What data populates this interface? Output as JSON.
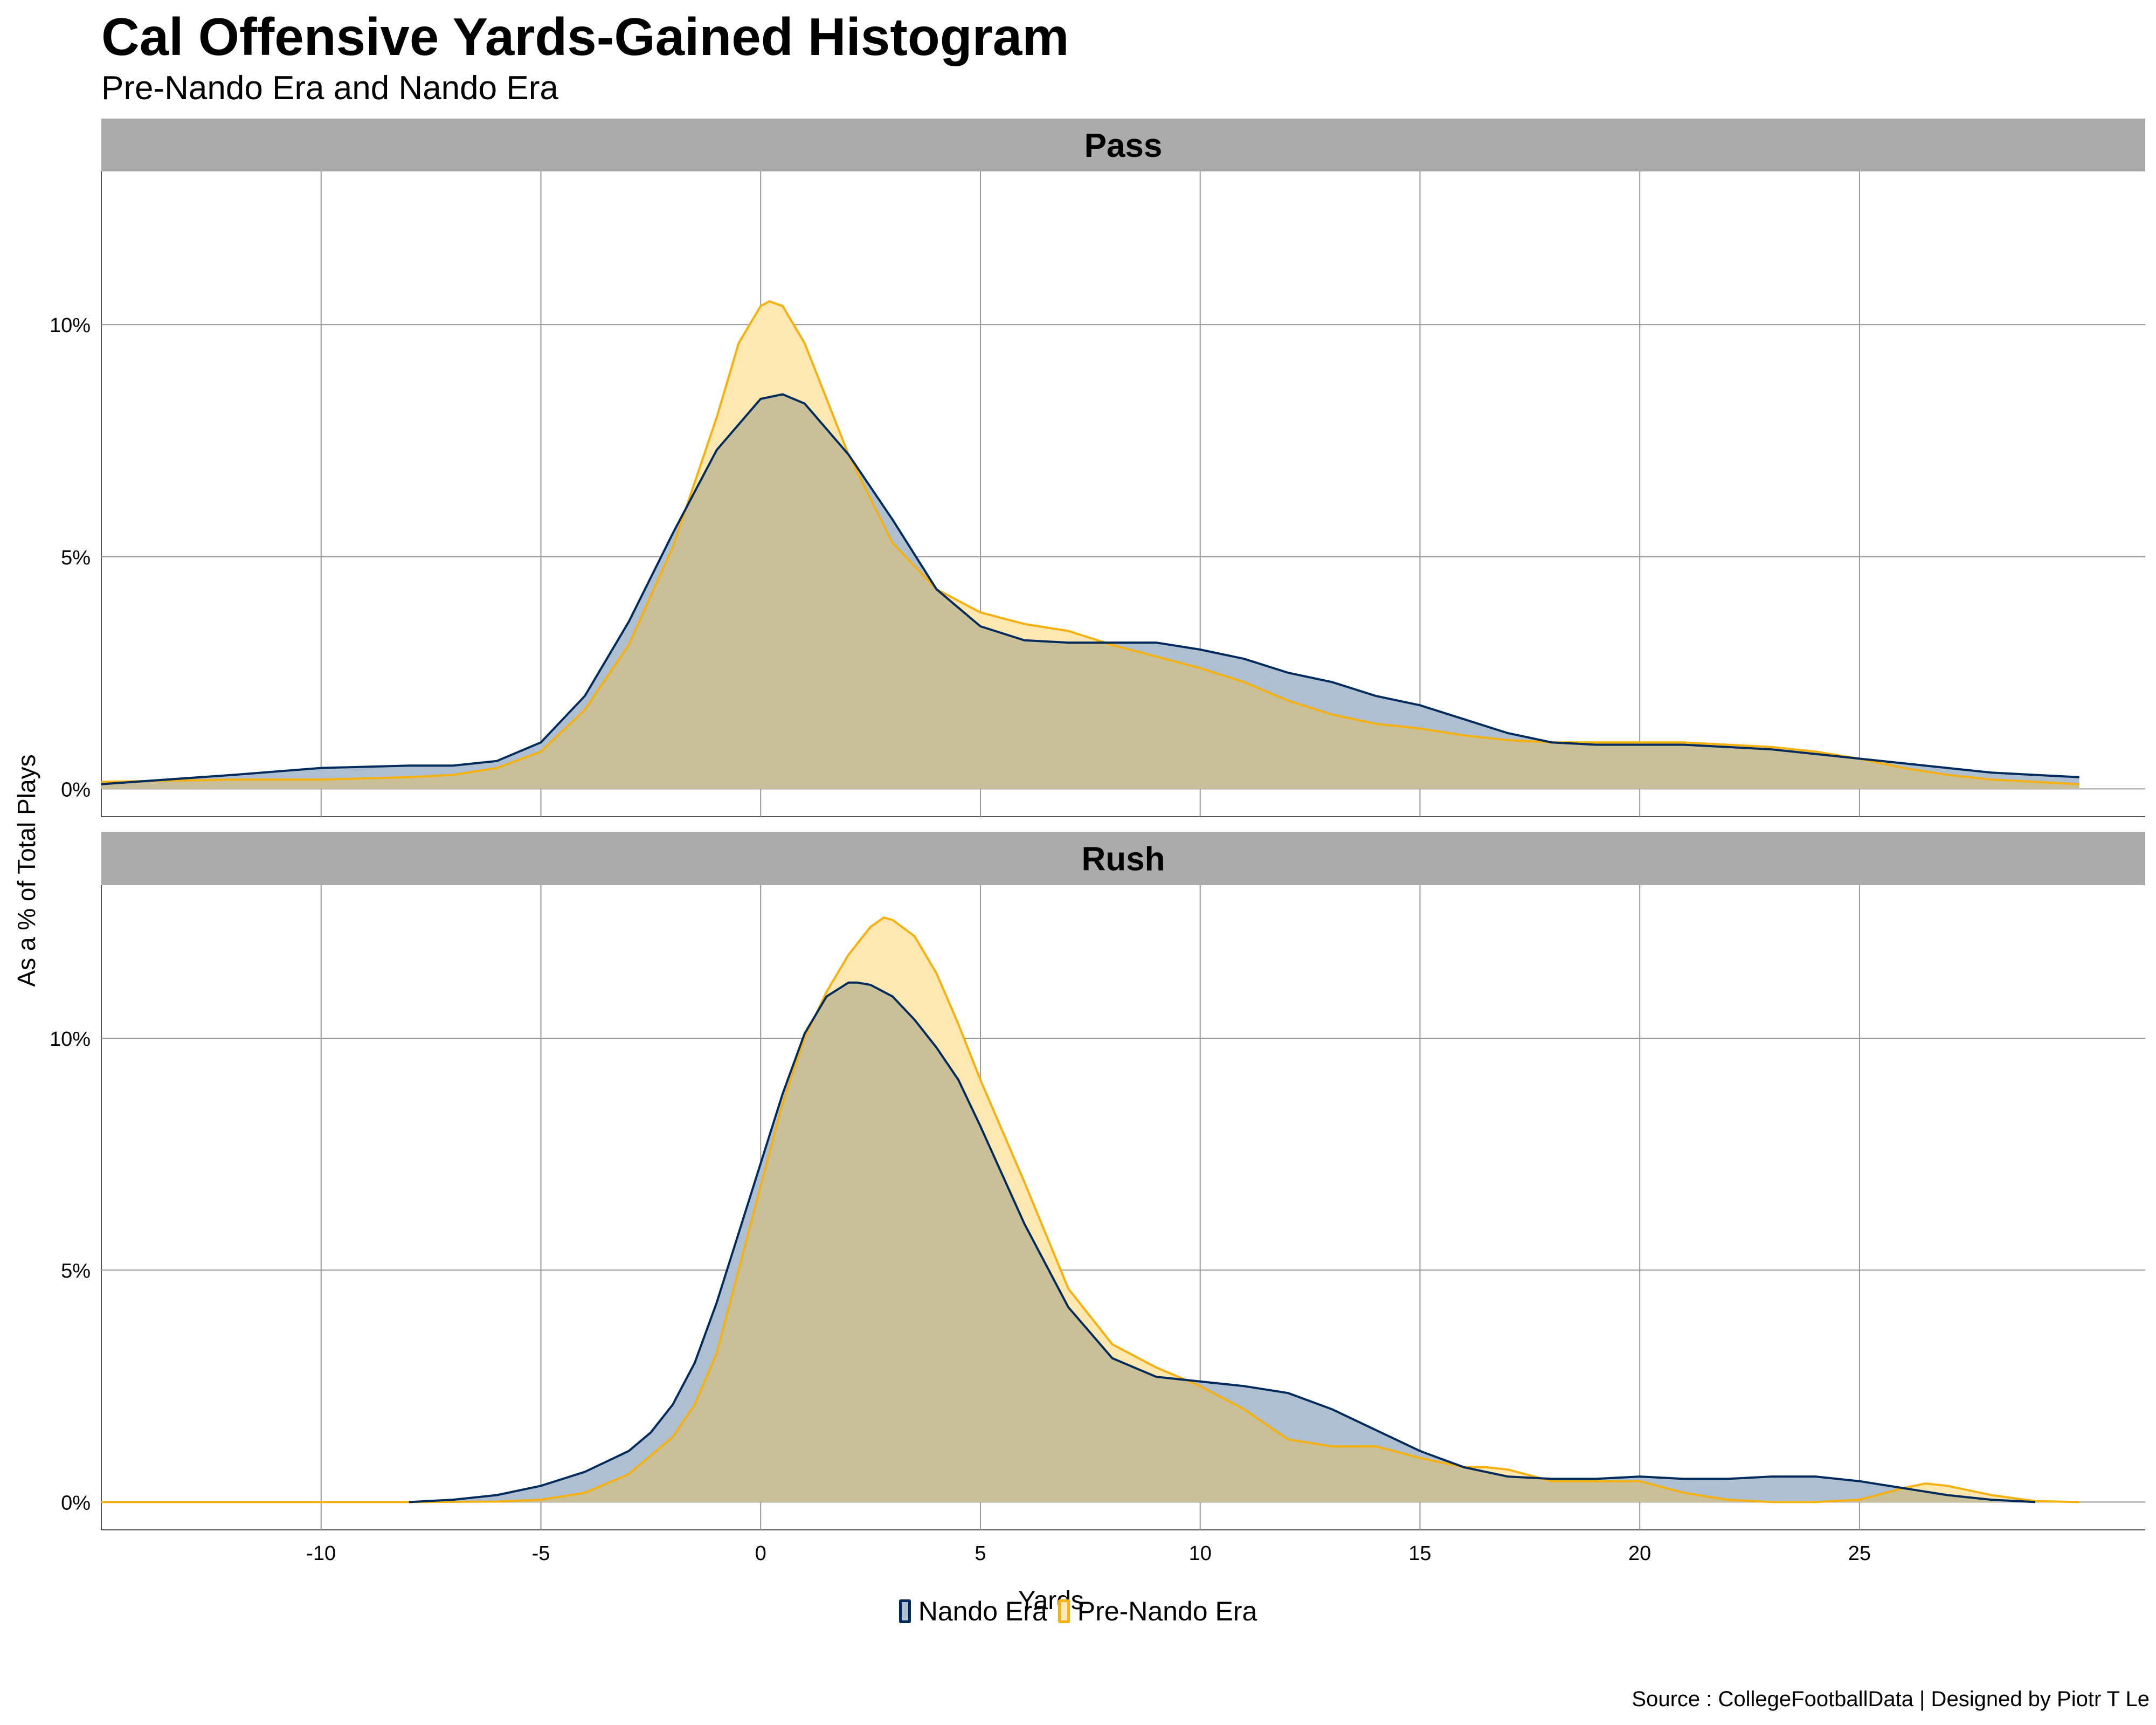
{
  "chart_data": {
    "type": "area",
    "title": "Cal Offensive Yards-Gained Histogram",
    "subtitle": "Pre-Nando Era and Nando Era",
    "xlabel": "Yards",
    "ylabel": "As a % of Total Plays",
    "xlim": [
      -15,
      31.5
    ],
    "ylim": [
      -0.6,
      13.3
    ],
    "x_ticks": [
      -10,
      -5,
      0,
      5,
      10,
      15,
      20,
      25
    ],
    "x_tick_labels": [
      "-10",
      "-5",
      "0",
      "5",
      "10",
      "15",
      "20",
      "25"
    ],
    "y_ticks": [
      0,
      5,
      10
    ],
    "y_tick_labels": [
      "0%",
      "5%",
      "10%"
    ],
    "grid": true,
    "legend_position": "bottom",
    "caption": "Source : CollegeFootballData | Designed by Piotr T Le",
    "colors": {
      "nando_line": "#002b5c",
      "nando_fill": "#aebfd2",
      "pre_nando_line": "#f5b10f",
      "pre_nando_fill": "#fde8b2",
      "overlap_fill": "#c9bf98",
      "strip_bg": "#ababab",
      "grid": "#999999"
    },
    "series_names": [
      "Nando Era",
      "Pre-Nando Era"
    ],
    "panels": [
      {
        "name": "Pass",
        "series": [
          {
            "name": "Nando Era",
            "x": [
              -15,
              -12,
              -10,
              -8,
              -7,
              -6,
              -5,
              -4,
              -3,
              -2,
              -1,
              0,
              0.5,
              1,
              2,
              3,
              4,
              5,
              6,
              7,
              8,
              9,
              10,
              11,
              12,
              13,
              14,
              15,
              16,
              17,
              18,
              19,
              20,
              21,
              22,
              23,
              24,
              25,
              26,
              27,
              28,
              29,
              30
            ],
            "values": [
              0.1,
              0.3,
              0.45,
              0.5,
              0.5,
              0.6,
              1.0,
              2.0,
              3.6,
              5.5,
              7.3,
              8.4,
              8.5,
              8.3,
              7.2,
              5.8,
              4.3,
              3.5,
              3.2,
              3.15,
              3.15,
              3.15,
              3.0,
              2.8,
              2.5,
              2.3,
              2.0,
              1.8,
              1.5,
              1.2,
              1.0,
              0.95,
              0.95,
              0.95,
              0.9,
              0.85,
              0.75,
              0.65,
              0.55,
              0.45,
              0.35,
              0.3,
              0.25
            ]
          },
          {
            "name": "Pre-Nando Era",
            "x": [
              -15,
              -12,
              -10,
              -8,
              -7,
              -6,
              -5,
              -4,
              -3,
              -2,
              -1,
              -0.5,
              0,
              0.2,
              0.5,
              1,
              2,
              3,
              4,
              5,
              6,
              7,
              8,
              9,
              10,
              11,
              12,
              13,
              14,
              15,
              16,
              17,
              18,
              19,
              20,
              21,
              22,
              23,
              24,
              25,
              26,
              27,
              28,
              29,
              30
            ],
            "values": [
              0.15,
              0.2,
              0.2,
              0.25,
              0.3,
              0.45,
              0.8,
              1.7,
              3.1,
              5.2,
              8.0,
              9.6,
              10.4,
              10.5,
              10.4,
              9.6,
              7.2,
              5.3,
              4.3,
              3.8,
              3.55,
              3.4,
              3.1,
              2.85,
              2.6,
              2.3,
              1.9,
              1.6,
              1.4,
              1.3,
              1.15,
              1.05,
              1.0,
              1.0,
              1.0,
              1.0,
              0.95,
              0.9,
              0.8,
              0.65,
              0.45,
              0.3,
              0.2,
              0.15,
              0.1
            ]
          }
        ]
      },
      {
        "name": "Rush",
        "series": [
          {
            "name": "Nando Era",
            "x": [
              -8,
              -7,
              -6,
              -5,
              -4,
              -3,
              -2.5,
              -2,
              -1.5,
              -1,
              -0.5,
              0,
              0.5,
              1,
              1.5,
              2,
              2.2,
              2.5,
              3,
              3.5,
              4,
              4.5,
              5,
              6,
              7,
              8,
              9,
              10,
              11,
              12,
              13,
              14,
              15,
              16,
              17,
              18,
              19,
              20,
              21,
              22,
              23,
              24,
              25,
              26,
              27,
              28,
              29
            ],
            "values": [
              0,
              0.05,
              0.15,
              0.35,
              0.65,
              1.1,
              1.5,
              2.1,
              3.0,
              4.3,
              5.8,
              7.3,
              8.8,
              10.1,
              10.9,
              11.2,
              11.2,
              11.15,
              10.9,
              10.4,
              9.8,
              9.1,
              8.1,
              6.0,
              4.2,
              3.1,
              2.7,
              2.6,
              2.5,
              2.35,
              2.0,
              1.55,
              1.1,
              0.75,
              0.55,
              0.5,
              0.5,
              0.55,
              0.5,
              0.5,
              0.55,
              0.55,
              0.45,
              0.3,
              0.15,
              0.05,
              0
            ]
          },
          {
            "name": "Pre-Nando Era",
            "x": [
              -15,
              -10,
              -8,
              -6,
              -5,
              -4,
              -3,
              -2,
              -1.5,
              -1,
              -0.5,
              0,
              0.5,
              1,
              1.5,
              2,
              2.5,
              2.8,
              3,
              3.5,
              4,
              4.5,
              5,
              6,
              7,
              8,
              9,
              10,
              11,
              12,
              13,
              14,
              15,
              16,
              16.5,
              17,
              18,
              19,
              20,
              21,
              22,
              23,
              24,
              25,
              26,
              26.5,
              27,
              28,
              29,
              30
            ],
            "values": [
              0,
              0,
              0,
              0.01,
              0.05,
              0.2,
              0.6,
              1.4,
              2.1,
              3.2,
              5.0,
              6.8,
              8.6,
              10.0,
              11.0,
              11.8,
              12.4,
              12.6,
              12.55,
              12.2,
              11.4,
              10.3,
              9.1,
              6.9,
              4.6,
              3.4,
              2.9,
              2.5,
              2.0,
              1.35,
              1.2,
              1.2,
              0.95,
              0.75,
              0.75,
              0.7,
              0.45,
              0.45,
              0.45,
              0.2,
              0.05,
              0,
              0,
              0.05,
              0.3,
              0.4,
              0.35,
              0.15,
              0.02,
              0
            ]
          }
        ]
      }
    ]
  }
}
